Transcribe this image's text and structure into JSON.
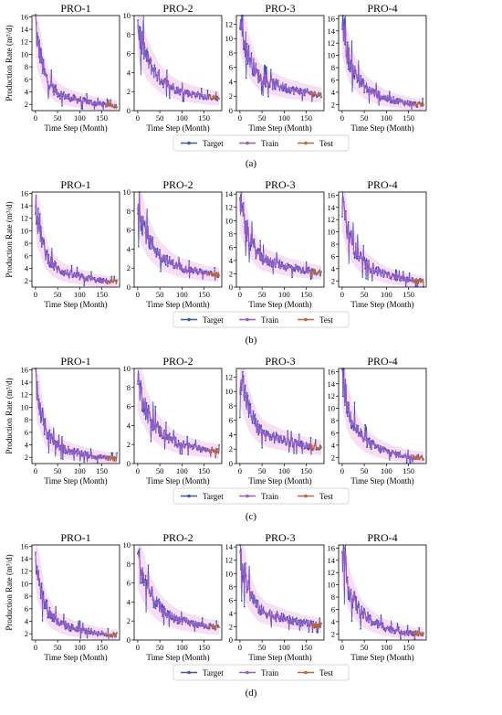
{
  "figure": {
    "panel_labels": [
      "(a)",
      "(b)",
      "(c)",
      "(d)"
    ],
    "legend": [
      "Target",
      "Train",
      "Test"
    ],
    "colors": {
      "target": "#3b56b5",
      "train": "#9b59c9",
      "test": "#c0623a",
      "band": "#f6d2f1"
    }
  },
  "chart_data": [
    {
      "type": "line",
      "panel": "(a)",
      "title": "PRO-1",
      "xlabel": "Time Step (Month)",
      "ylabel": "Production Rate (m³/d)",
      "xticks": [
        0,
        50,
        100,
        150
      ],
      "xlim": [
        -8,
        190
      ],
      "yticks": [
        2,
        4,
        6,
        8,
        10,
        12,
        14,
        16
      ],
      "ylim": [
        1,
        16.2
      ],
      "x": [
        0,
        5,
        10,
        15,
        20,
        30,
        40,
        50,
        60,
        70,
        80,
        90,
        100,
        110,
        120,
        130,
        140,
        150,
        160,
        170,
        180
      ],
      "series": [
        {
          "name": "Target",
          "values": [
            15.5,
            11.5,
            10.5,
            8.5,
            7.0,
            5.5,
            4.6,
            3.9,
            3.5,
            3.2,
            3.0,
            2.8,
            2.7,
            2.5,
            2.4,
            2.2,
            2.1,
            2.0,
            1.9,
            1.8,
            1.8
          ]
        }
      ],
      "test_start": 160
    },
    {
      "type": "line",
      "panel": "(a)",
      "title": "PRO-2",
      "xlabel": "Time Step (Month)",
      "ylabel": "",
      "xticks": [
        0,
        50,
        100,
        150
      ],
      "xlim": [
        -8,
        190
      ],
      "yticks": [
        0,
        2,
        4,
        6,
        8,
        10
      ],
      "ylim": [
        0,
        10
      ],
      "x": [
        0,
        5,
        10,
        15,
        20,
        30,
        40,
        50,
        60,
        70,
        80,
        90,
        100,
        110,
        120,
        130,
        140,
        150,
        160,
        170,
        180
      ],
      "series": [
        {
          "name": "Target",
          "values": [
            9.0,
            7.8,
            7.0,
            6.4,
            5.6,
            4.7,
            4.0,
            3.4,
            3.0,
            2.7,
            2.4,
            2.2,
            2.0,
            1.9,
            1.8,
            1.7,
            1.6,
            1.5,
            1.4,
            1.4,
            1.3
          ]
        }
      ],
      "test_start": 160
    },
    {
      "type": "line",
      "panel": "(a)",
      "title": "PRO-3",
      "xlabel": "Time Step (Month)",
      "ylabel": "",
      "xticks": [
        0,
        50,
        100,
        150
      ],
      "xlim": [
        -8,
        190
      ],
      "yticks": [
        0,
        2,
        4,
        6,
        8,
        10,
        12
      ],
      "ylim": [
        0,
        13.2
      ],
      "x": [
        0,
        5,
        10,
        15,
        20,
        30,
        40,
        50,
        60,
        70,
        80,
        90,
        100,
        110,
        120,
        130,
        140,
        150,
        160,
        170,
        180
      ],
      "series": [
        {
          "name": "Target",
          "values": [
            12.8,
            11.5,
            10.0,
            8.8,
            7.6,
            6.2,
            5.0,
            4.4,
            4.0,
            3.8,
            3.6,
            3.4,
            3.2,
            3.0,
            2.9,
            2.8,
            2.6,
            2.5,
            2.4,
            2.3,
            2.2
          ]
        }
      ],
      "test_start": 160
    },
    {
      "type": "line",
      "panel": "(a)",
      "title": "PRO-4",
      "xlabel": "Time Step (Month)",
      "ylabel": "",
      "xticks": [
        0,
        50,
        100,
        150
      ],
      "xlim": [
        -8,
        190
      ],
      "yticks": [
        2,
        4,
        6,
        8,
        10,
        12,
        14,
        16
      ],
      "ylim": [
        1,
        16.5
      ],
      "x": [
        0,
        5,
        10,
        15,
        20,
        30,
        40,
        50,
        60,
        70,
        80,
        90,
        100,
        110,
        120,
        130,
        140,
        150,
        160,
        170,
        180
      ],
      "series": [
        {
          "name": "Target",
          "values": [
            15.8,
            13.5,
            11.0,
            9.5,
            8.5,
            7.0,
            5.8,
            5.0,
            4.4,
            4.0,
            3.6,
            3.3,
            3.0,
            2.8,
            2.6,
            2.5,
            2.3,
            2.2,
            2.1,
            2.0,
            2.0
          ]
        }
      ],
      "test_start": 160
    },
    {
      "type": "line",
      "panel": "(b)",
      "title": "PRO-1",
      "xlabel": "Time Step (Month)",
      "ylabel": "Production Rate (m³/d)",
      "xticks": [
        0,
        50,
        100,
        150
      ],
      "xlim": [
        -8,
        190
      ],
      "yticks": [
        2,
        4,
        6,
        8,
        10,
        12,
        14,
        16
      ],
      "ylim": [
        1,
        16.2
      ],
      "x": [
        0,
        5,
        10,
        15,
        20,
        30,
        40,
        50,
        60,
        70,
        80,
        90,
        100,
        110,
        120,
        130,
        140,
        150,
        160,
        170,
        180
      ],
      "series": [
        {
          "name": "Target",
          "values": [
            15.5,
            11.5,
            10.5,
            8.5,
            7.0,
            5.5,
            4.6,
            3.9,
            3.5,
            3.2,
            3.0,
            2.8,
            2.7,
            2.5,
            2.4,
            2.2,
            2.1,
            2.0,
            1.9,
            1.8,
            1.8
          ]
        }
      ],
      "test_start": 160
    },
    {
      "type": "line",
      "panel": "(b)",
      "title": "PRO-2",
      "xlabel": "Time Step (Month)",
      "ylabel": "",
      "xticks": [
        0,
        50,
        100,
        150
      ],
      "xlim": [
        -8,
        190
      ],
      "yticks": [
        0,
        2,
        4,
        6,
        8,
        10
      ],
      "ylim": [
        0,
        10
      ],
      "x": [
        0,
        5,
        10,
        15,
        20,
        30,
        40,
        50,
        60,
        70,
        80,
        90,
        100,
        110,
        120,
        130,
        140,
        150,
        160,
        170,
        180
      ],
      "series": [
        {
          "name": "Target",
          "values": [
            9.0,
            7.8,
            7.0,
            6.4,
            5.6,
            4.7,
            4.0,
            3.4,
            3.0,
            2.7,
            2.4,
            2.2,
            2.0,
            1.9,
            1.8,
            1.7,
            1.6,
            1.5,
            1.4,
            1.4,
            1.3
          ]
        }
      ],
      "test_start": 160
    },
    {
      "type": "line",
      "panel": "(b)",
      "title": "PRO-3",
      "xlabel": "Time Step (Month)",
      "ylabel": "",
      "xticks": [
        0,
        50,
        100,
        150
      ],
      "xlim": [
        -8,
        190
      ],
      "yticks": [
        0,
        2,
        4,
        6,
        8,
        10,
        12,
        14
      ],
      "ylim": [
        0,
        14.3
      ],
      "x": [
        0,
        5,
        10,
        15,
        20,
        30,
        40,
        50,
        60,
        70,
        80,
        90,
        100,
        110,
        120,
        130,
        140,
        150,
        160,
        170,
        180
      ],
      "series": [
        {
          "name": "Target",
          "values": [
            12.8,
            11.5,
            10.0,
            8.8,
            7.6,
            6.2,
            5.0,
            4.4,
            4.0,
            3.8,
            3.6,
            3.4,
            3.2,
            3.0,
            2.9,
            2.8,
            2.6,
            2.5,
            2.4,
            2.3,
            2.2
          ]
        }
      ],
      "test_start": 160
    },
    {
      "type": "line",
      "panel": "(b)",
      "title": "PRO-4",
      "xlabel": "Time Step (Month)",
      "ylabel": "",
      "xticks": [
        0,
        50,
        100,
        150
      ],
      "xlim": [
        -8,
        190
      ],
      "yticks": [
        2,
        4,
        6,
        8,
        10,
        12,
        14,
        16
      ],
      "ylim": [
        1,
        16.5
      ],
      "x": [
        0,
        5,
        10,
        15,
        20,
        30,
        40,
        50,
        60,
        70,
        80,
        90,
        100,
        110,
        120,
        130,
        140,
        150,
        160,
        170,
        180
      ],
      "series": [
        {
          "name": "Target",
          "values": [
            15.8,
            13.5,
            11.0,
            9.5,
            8.5,
            7.0,
            5.8,
            5.0,
            4.4,
            4.0,
            3.6,
            3.3,
            3.0,
            2.8,
            2.6,
            2.5,
            2.3,
            2.2,
            2.1,
            2.0,
            2.0
          ]
        }
      ],
      "test_start": 160
    },
    {
      "type": "line",
      "panel": "(c)",
      "title": "PRO-1",
      "xlabel": "Time Step (Month)",
      "ylabel": "Production Rate (m³/d)",
      "xticks": [
        0,
        50,
        100,
        150
      ],
      "xlim": [
        -8,
        190
      ],
      "yticks": [
        2,
        4,
        6,
        8,
        10,
        12,
        14,
        16
      ],
      "ylim": [
        1,
        16.2
      ],
      "x": [
        0,
        5,
        10,
        15,
        20,
        30,
        40,
        50,
        60,
        70,
        80,
        90,
        100,
        110,
        120,
        130,
        140,
        150,
        160,
        170,
        180
      ],
      "series": [
        {
          "name": "Target",
          "values": [
            15.5,
            11.5,
            10.5,
            8.5,
            7.0,
            5.5,
            4.6,
            3.9,
            3.5,
            3.2,
            3.0,
            2.8,
            2.7,
            2.5,
            2.4,
            2.2,
            2.1,
            2.0,
            1.9,
            1.8,
            1.8
          ]
        }
      ],
      "test_start": 160
    },
    {
      "type": "line",
      "panel": "(c)",
      "title": "PRO-2",
      "xlabel": "Time Step (Month)",
      "ylabel": "",
      "xticks": [
        0,
        50,
        100,
        150
      ],
      "xlim": [
        -8,
        190
      ],
      "yticks": [
        0,
        2,
        4,
        6,
        8,
        10
      ],
      "ylim": [
        0,
        10
      ],
      "x": [
        0,
        5,
        10,
        15,
        20,
        30,
        40,
        50,
        60,
        70,
        80,
        90,
        100,
        110,
        120,
        130,
        140,
        150,
        160,
        170,
        180
      ],
      "series": [
        {
          "name": "Target",
          "values": [
            9.0,
            7.8,
            7.0,
            6.4,
            5.6,
            4.7,
            4.0,
            3.4,
            3.0,
            2.7,
            2.4,
            2.2,
            2.0,
            1.9,
            1.8,
            1.7,
            1.6,
            1.5,
            1.4,
            1.4,
            1.3
          ]
        }
      ],
      "test_start": 160
    },
    {
      "type": "line",
      "panel": "(c)",
      "title": "PRO-3",
      "xlabel": "Time Step (Month)",
      "ylabel": "",
      "xticks": [
        0,
        50,
        100,
        150
      ],
      "xlim": [
        -8,
        190
      ],
      "yticks": [
        0,
        2,
        4,
        6,
        8,
        10,
        12
      ],
      "ylim": [
        0,
        13.2
      ],
      "x": [
        0,
        5,
        10,
        15,
        20,
        30,
        40,
        50,
        60,
        70,
        80,
        90,
        100,
        110,
        120,
        130,
        140,
        150,
        160,
        170,
        180
      ],
      "series": [
        {
          "name": "Target",
          "values": [
            12.8,
            11.5,
            10.0,
            8.8,
            7.6,
            6.2,
            5.0,
            4.4,
            4.0,
            3.8,
            3.6,
            3.4,
            3.2,
            3.0,
            2.9,
            2.8,
            2.6,
            2.5,
            2.4,
            2.3,
            2.2
          ]
        }
      ],
      "test_start": 160
    },
    {
      "type": "line",
      "panel": "(c)",
      "title": "PRO-4",
      "xlabel": "Time Step (Month)",
      "ylabel": "",
      "xticks": [
        0,
        50,
        100,
        150
      ],
      "xlim": [
        -8,
        190
      ],
      "yticks": [
        2,
        4,
        6,
        8,
        10,
        12,
        14,
        16
      ],
      "ylim": [
        1,
        16.5
      ],
      "x": [
        0,
        5,
        10,
        15,
        20,
        30,
        40,
        50,
        60,
        70,
        80,
        90,
        100,
        110,
        120,
        130,
        140,
        150,
        160,
        170,
        180
      ],
      "series": [
        {
          "name": "Target",
          "values": [
            15.8,
            13.5,
            11.0,
            9.5,
            8.5,
            7.0,
            5.8,
            5.0,
            4.4,
            4.0,
            3.6,
            3.3,
            3.0,
            2.8,
            2.6,
            2.5,
            2.3,
            2.2,
            2.1,
            2.0,
            2.0
          ]
        }
      ],
      "test_start": 160
    },
    {
      "type": "line",
      "panel": "(d)",
      "title": "PRO-1",
      "xlabel": "Time Step (Month)",
      "ylabel": "Production Rate (m³/d)",
      "xticks": [
        0,
        50,
        100,
        150
      ],
      "xlim": [
        -8,
        190
      ],
      "yticks": [
        2,
        4,
        6,
        8,
        10,
        12,
        14,
        16
      ],
      "ylim": [
        1,
        16.2
      ],
      "x": [
        0,
        5,
        10,
        15,
        20,
        30,
        40,
        50,
        60,
        70,
        80,
        90,
        100,
        110,
        120,
        130,
        140,
        150,
        160,
        170,
        180
      ],
      "series": [
        {
          "name": "Target",
          "values": [
            15.5,
            11.5,
            10.5,
            8.5,
            7.0,
            5.5,
            4.6,
            3.9,
            3.5,
            3.2,
            3.0,
            2.8,
            2.7,
            2.5,
            2.4,
            2.2,
            2.1,
            2.0,
            1.9,
            1.8,
            1.8
          ]
        }
      ],
      "test_start": 160
    },
    {
      "type": "line",
      "panel": "(d)",
      "title": "PRO-2",
      "xlabel": "Time Step (Month)",
      "ylabel": "",
      "xticks": [
        0,
        50,
        100,
        150
      ],
      "xlim": [
        -8,
        190
      ],
      "yticks": [
        0,
        2,
        4,
        6,
        8,
        10
      ],
      "ylim": [
        0,
        10
      ],
      "x": [
        0,
        5,
        10,
        15,
        20,
        30,
        40,
        50,
        60,
        70,
        80,
        90,
        100,
        110,
        120,
        130,
        140,
        150,
        160,
        170,
        180
      ],
      "series": [
        {
          "name": "Target",
          "values": [
            9.0,
            7.8,
            7.0,
            6.4,
            5.6,
            4.7,
            4.0,
            3.4,
            3.0,
            2.7,
            2.4,
            2.2,
            2.0,
            1.9,
            1.8,
            1.7,
            1.6,
            1.5,
            1.4,
            1.4,
            1.3
          ]
        }
      ],
      "test_start": 160
    },
    {
      "type": "line",
      "panel": "(d)",
      "title": "PRO-3",
      "xlabel": "Time Step (Month)",
      "ylabel": "",
      "xticks": [
        0,
        50,
        100,
        150
      ],
      "xlim": [
        -8,
        190
      ],
      "yticks": [
        0,
        2,
        4,
        6,
        8,
        10,
        12,
        14
      ],
      "ylim": [
        0,
        14.3
      ],
      "x": [
        0,
        5,
        10,
        15,
        20,
        30,
        40,
        50,
        60,
        70,
        80,
        90,
        100,
        110,
        120,
        130,
        140,
        150,
        160,
        170,
        180
      ],
      "series": [
        {
          "name": "Target",
          "values": [
            12.8,
            11.5,
            10.0,
            8.8,
            7.6,
            6.2,
            5.0,
            4.4,
            4.0,
            3.8,
            3.6,
            3.4,
            3.2,
            3.0,
            2.9,
            2.8,
            2.6,
            2.5,
            2.4,
            2.3,
            2.2
          ]
        }
      ],
      "test_start": 160
    },
    {
      "type": "line",
      "panel": "(d)",
      "title": "PRO-4",
      "xlabel": "Time Step (Month)",
      "ylabel": "",
      "xticks": [
        0,
        50,
        100,
        150
      ],
      "xlim": [
        -8,
        190
      ],
      "yticks": [
        2,
        4,
        6,
        8,
        10,
        12,
        14,
        16
      ],
      "ylim": [
        1,
        16.5
      ],
      "x": [
        0,
        5,
        10,
        15,
        20,
        30,
        40,
        50,
        60,
        70,
        80,
        90,
        100,
        110,
        120,
        130,
        140,
        150,
        160,
        170,
        180
      ],
      "series": [
        {
          "name": "Target",
          "values": [
            15.8,
            13.5,
            11.0,
            9.5,
            8.5,
            7.0,
            5.8,
            5.0,
            4.4,
            4.0,
            3.6,
            3.3,
            3.0,
            2.8,
            2.6,
            2.5,
            2.3,
            2.2,
            2.1,
            2.0,
            2.0
          ]
        }
      ],
      "test_start": 160
    }
  ]
}
